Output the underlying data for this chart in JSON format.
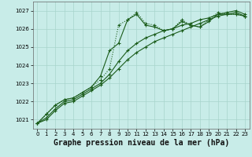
{
  "title": "Graphe pression niveau de la mer (hPa)",
  "bg_color": "#c8ece8",
  "grid_color": "#a8d4cc",
  "line_color": "#1a5c1a",
  "xlim": [
    -0.5,
    23.5
  ],
  "ylim": [
    1020.5,
    1027.5
  ],
  "yticks": [
    1021,
    1022,
    1023,
    1024,
    1025,
    1026,
    1027
  ],
  "xticks": [
    0,
    1,
    2,
    3,
    4,
    5,
    6,
    7,
    8,
    9,
    10,
    11,
    12,
    13,
    14,
    15,
    16,
    17,
    18,
    19,
    20,
    21,
    22,
    23
  ],
  "series1_x": [
    0,
    1,
    2,
    3,
    4,
    5,
    6,
    7,
    8,
    9,
    10,
    11,
    12,
    13,
    14,
    15,
    16,
    17,
    18,
    19,
    20,
    21,
    22,
    23
  ],
  "series1_y": [
    1020.8,
    1021.3,
    1021.8,
    1022.1,
    1022.2,
    1022.5,
    1022.8,
    1023.2,
    1023.8,
    1026.2,
    1026.5,
    1026.9,
    1026.3,
    1026.2,
    1025.9,
    1026.0,
    1026.5,
    1026.2,
    1026.1,
    1026.5,
    1026.9,
    1026.8,
    1026.8,
    1026.7
  ],
  "series2_x": [
    0,
    1,
    2,
    3,
    4,
    5,
    6,
    7,
    8,
    9,
    10,
    11,
    12,
    13,
    14,
    15,
    16,
    17,
    18,
    19,
    20,
    21,
    22,
    23
  ],
  "series2_y": [
    1020.8,
    1021.3,
    1021.8,
    1022.1,
    1022.2,
    1022.5,
    1022.8,
    1023.4,
    1024.8,
    1025.2,
    1026.5,
    1026.8,
    1026.2,
    1026.1,
    1025.9,
    1026.0,
    1026.4,
    1026.2,
    1026.1,
    1026.4,
    1026.8,
    1026.8,
    1026.8,
    1026.7
  ],
  "series3_x": [
    0,
    1,
    2,
    3,
    4,
    5,
    6,
    7,
    8,
    9,
    10,
    11,
    12,
    13,
    14,
    15,
    16,
    17,
    18,
    19,
    20,
    21,
    22,
    23
  ],
  "series3_y": [
    1020.8,
    1021.1,
    1021.6,
    1022.0,
    1022.1,
    1022.4,
    1022.7,
    1023.0,
    1023.5,
    1024.2,
    1024.8,
    1025.2,
    1025.5,
    1025.7,
    1025.9,
    1026.0,
    1026.2,
    1026.3,
    1026.5,
    1026.6,
    1026.8,
    1026.9,
    1027.0,
    1026.8
  ],
  "series4_x": [
    0,
    1,
    2,
    3,
    4,
    5,
    6,
    7,
    8,
    9,
    10,
    11,
    12,
    13,
    14,
    15,
    16,
    17,
    18,
    19,
    20,
    21,
    22,
    23
  ],
  "series4_y": [
    1020.8,
    1021.0,
    1021.5,
    1021.9,
    1022.0,
    1022.3,
    1022.6,
    1022.9,
    1023.3,
    1023.8,
    1024.3,
    1024.7,
    1025.0,
    1025.3,
    1025.5,
    1025.7,
    1025.9,
    1026.1,
    1026.3,
    1026.5,
    1026.7,
    1026.8,
    1026.9,
    1026.7
  ],
  "marker_size": 3,
  "line_width": 0.8,
  "title_fontsize": 7,
  "tick_fontsize": 5,
  "ylabel_fontsize": 5
}
